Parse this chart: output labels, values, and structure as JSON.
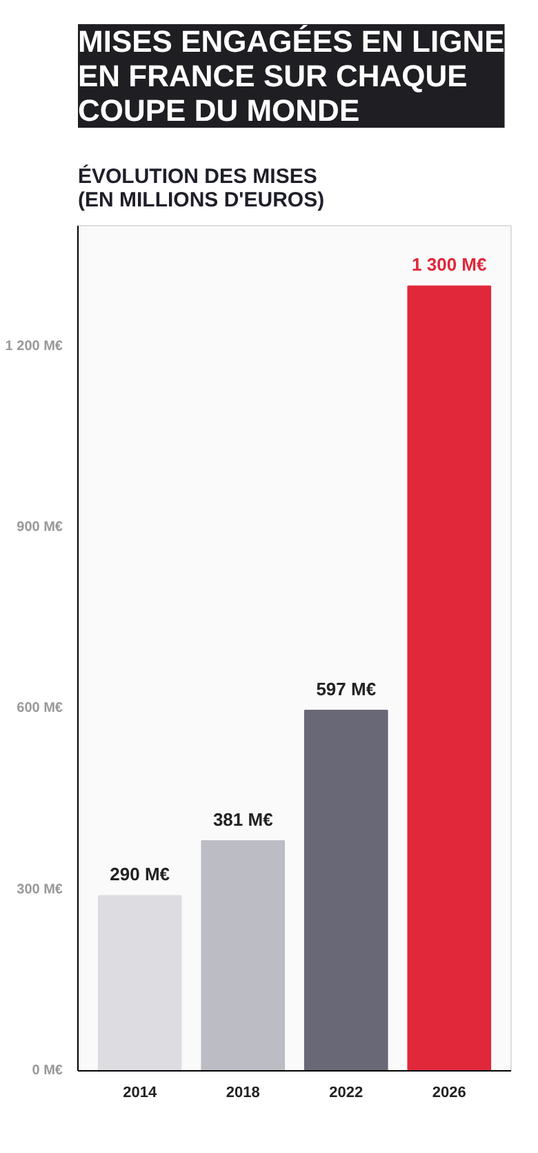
{
  "chart_data": {
    "type": "bar",
    "title": "MISES ENGAGÉES EN LIGNE EN FRANCE SUR CHAQUE COUPE DU MONDE",
    "subtitle": "ÉVOLUTION DES MISES (EN MILLIONS D'EUROS)",
    "categories": [
      "2014",
      "2018",
      "2022",
      "2026"
    ],
    "values": [
      290,
      381,
      597,
      1300
    ],
    "colors": [
      "#dcdce1",
      "#bcbcc4",
      "#686876",
      "#e0283a"
    ],
    "value_labels": [
      "290 M€",
      "381 M€",
      "597 M€",
      "1 300 M€"
    ],
    "ylim": [
      0,
      1400
    ],
    "yticks": [
      {
        "value": 0,
        "label": "0 M€"
      },
      {
        "value": 300,
        "label": "300 M€"
      },
      {
        "value": 600,
        "label": "600 M€"
      },
      {
        "value": 900,
        "label": "900 M€"
      },
      {
        "value": 1200,
        "label": "1 200 M€"
      }
    ],
    "grid": false
  }
}
